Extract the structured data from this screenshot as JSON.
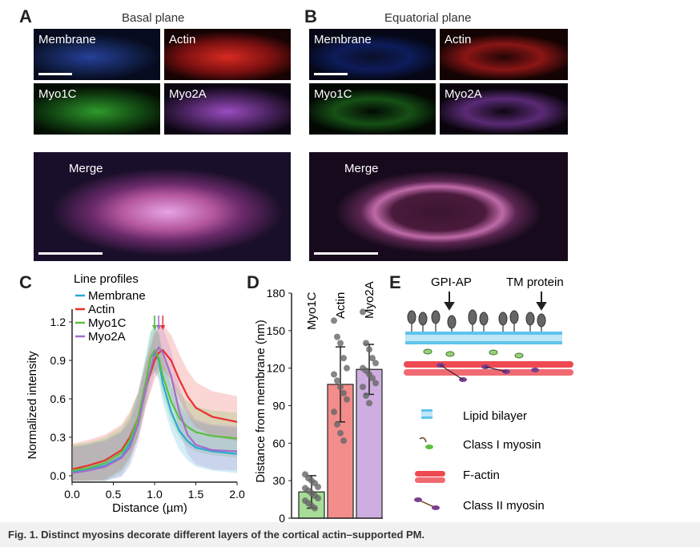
{
  "panels": {
    "A": {
      "letter": "A",
      "title": "Basal plane",
      "tiles": [
        "Membrane",
        "Actin",
        "Myo1C",
        "Myo2A"
      ],
      "merge": "Merge"
    },
    "B": {
      "letter": "B",
      "title": "Equatorial plane",
      "tiles": [
        "Membrane",
        "Actin",
        "Myo1C",
        "Myo2A"
      ],
      "merge": "Merge"
    },
    "C": {
      "letter": "C"
    },
    "D": {
      "letter": "D"
    },
    "E": {
      "letter": "E",
      "gpi": "GPI-AP",
      "tm": "TM protein",
      "legend": [
        "Lipid bilayer",
        "Class I myosin",
        "F-actin",
        "Class II myosin"
      ]
    }
  },
  "colors": {
    "membrane": "#29a8d8",
    "actin": "#e8302e",
    "myo1c": "#5cbf3f",
    "myo2a": "#a66cc6"
  },
  "chart_data": [
    {
      "type": "line",
      "legend_title": "Line profiles",
      "xlabel": "Distance (µm)",
      "ylabel": "Normalized intensity",
      "xlim": [
        0,
        2.0
      ],
      "ylim": [
        -0.05,
        1.3
      ],
      "xticks": [
        "0.0",
        "0.5",
        "1.0",
        "1.5",
        "2.0"
      ],
      "yticks": [
        "0.0",
        "0.3",
        "0.6",
        "0.9",
        "1.2"
      ],
      "series": [
        {
          "name": "Membrane",
          "x": [
            0,
            0.2,
            0.4,
            0.6,
            0.7,
            0.8,
            0.9,
            0.95,
            1.0,
            1.05,
            1.1,
            1.2,
            1.3,
            1.4,
            1.5,
            1.7,
            2.0
          ],
          "y": [
            0.03,
            0.05,
            0.08,
            0.15,
            0.25,
            0.45,
            0.75,
            0.92,
            0.96,
            0.9,
            0.72,
            0.5,
            0.35,
            0.27,
            0.22,
            0.19,
            0.17
          ]
        },
        {
          "name": "Actin",
          "x": [
            0,
            0.2,
            0.4,
            0.6,
            0.7,
            0.8,
            0.9,
            1.0,
            1.05,
            1.1,
            1.2,
            1.3,
            1.4,
            1.5,
            1.7,
            2.0
          ],
          "y": [
            0.05,
            0.08,
            0.12,
            0.2,
            0.3,
            0.45,
            0.7,
            0.9,
            0.96,
            0.98,
            0.9,
            0.75,
            0.62,
            0.53,
            0.46,
            0.42
          ]
        },
        {
          "name": "Myo1C",
          "x": [
            0,
            0.2,
            0.4,
            0.6,
            0.7,
            0.8,
            0.9,
            0.95,
            1.0,
            1.05,
            1.1,
            1.2,
            1.3,
            1.4,
            1.5,
            1.7,
            2.0
          ],
          "y": [
            0.04,
            0.06,
            0.1,
            0.18,
            0.28,
            0.45,
            0.75,
            0.92,
            0.98,
            0.92,
            0.78,
            0.58,
            0.45,
            0.38,
            0.34,
            0.31,
            0.29
          ]
        },
        {
          "name": "Myo2A",
          "x": [
            0,
            0.2,
            0.4,
            0.6,
            0.7,
            0.8,
            0.9,
            1.0,
            1.05,
            1.1,
            1.2,
            1.3,
            1.4,
            1.5,
            1.7,
            2.0
          ],
          "y": [
            0.02,
            0.04,
            0.07,
            0.14,
            0.22,
            0.4,
            0.7,
            0.95,
            1.0,
            0.96,
            0.78,
            0.5,
            0.32,
            0.24,
            0.2,
            0.19
          ]
        }
      ]
    },
    {
      "type": "bar",
      "ylabel": "Distance from membrane (nm)",
      "ylim": [
        0,
        180
      ],
      "yticks": [
        "0",
        "30",
        "60",
        "90",
        "120",
        "150",
        "180"
      ],
      "categories": [
        "Myo1C",
        "Actin",
        "Myo2A"
      ],
      "values": [
        21,
        107,
        119
      ],
      "errors": [
        13,
        30,
        20
      ],
      "points": [
        [
          35,
          32,
          30,
          28,
          25,
          24,
          22,
          20,
          18,
          16,
          14,
          12,
          10,
          8
        ],
        [
          158,
          145,
          140,
          128,
          120,
          115,
          110,
          105,
          100,
          95,
          85,
          75,
          68,
          62
        ],
        [
          165,
          140,
          135,
          128,
          124,
          120,
          118,
          115,
          112,
          108,
          105,
          98,
          92
        ]
      ]
    }
  ],
  "caption": "Fig. 1. Distinct myosins decorate different layers of the cortical actin–supported PM."
}
